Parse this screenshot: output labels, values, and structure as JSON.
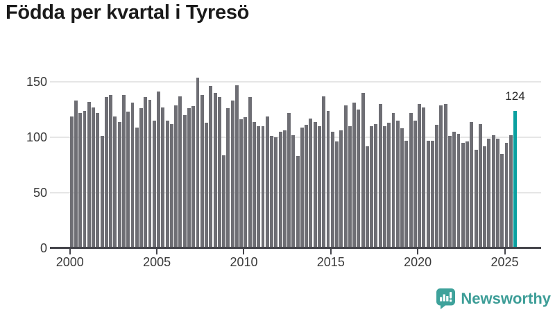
{
  "title": "Födda per kvartal i Tyresö",
  "footer": {
    "brand": "Newsworthy",
    "brand_icon": "bar-chart-speech-bubble-icon",
    "brand_color": "#3c9d97"
  },
  "colors": {
    "background": "#ffffff",
    "bar": "#6e6e74",
    "highlight": "#0aa0a0",
    "axis": "#45454b",
    "gridline": "#e6e6e6",
    "axis_text": "#3a3a3a",
    "title_text": "#1a1a1a"
  },
  "chart_data": {
    "type": "bar",
    "title": "Födda per kvartal i Tyresö",
    "x_unit": "quarter",
    "x_start": "2000-Q1",
    "x_end": "2025-Q3",
    "x_tick_labels": [
      "2000",
      "2005",
      "2010",
      "2015",
      "2020",
      "2025"
    ],
    "y_ticks": [
      0,
      50,
      100,
      150
    ],
    "ylim": [
      0,
      160
    ],
    "grid": "horizontal",
    "legend": "none",
    "bar_color": "#6e6e74",
    "highlight_color": "#0aa0a0",
    "highlight_index": 102,
    "annotation": {
      "text": "124",
      "bar_index": 102
    },
    "values": [
      119,
      133,
      122,
      124,
      132,
      127,
      122,
      101,
      136,
      138,
      119,
      114,
      138,
      123,
      131,
      109,
      126,
      136,
      134,
      115,
      141,
      127,
      115,
      112,
      129,
      137,
      120,
      126,
      128,
      154,
      138,
      113,
      146,
      140,
      136,
      84,
      126,
      133,
      147,
      116,
      118,
      136,
      114,
      110,
      110,
      119,
      101,
      100,
      105,
      106,
      122,
      102,
      83,
      109,
      111,
      117,
      114,
      110,
      137,
      124,
      105,
      96,
      106,
      129,
      110,
      131,
      125,
      140,
      92,
      110,
      112,
      130,
      110,
      113,
      122,
      115,
      108,
      97,
      122,
      115,
      130,
      127,
      97,
      97,
      111,
      129,
      130,
      101,
      105,
      103,
      95,
      96,
      114,
      89,
      112,
      92,
      99,
      102,
      99,
      85,
      95,
      102,
      124
    ]
  }
}
